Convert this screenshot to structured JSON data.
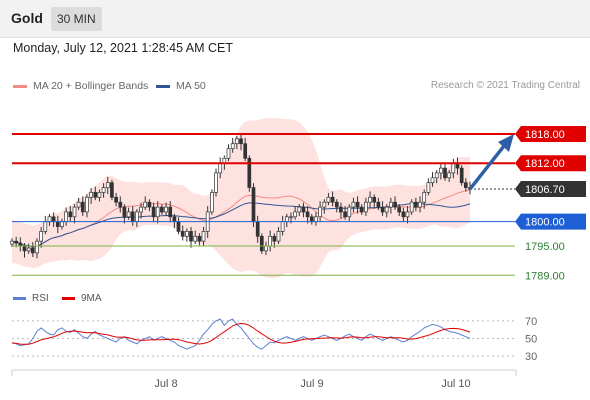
{
  "header": {
    "title": "Gold",
    "timeframe": "30 MIN"
  },
  "datetime": "Monday, July 12, 2021 1:28:45 AM CET",
  "legend": {
    "items": [
      {
        "label": "MA 20 + Bollinger Bands",
        "color": "#f28b82"
      },
      {
        "label": "MA 50",
        "color": "#2f5597"
      }
    ],
    "credit": "Research © 2021 Trading Central"
  },
  "indicator_legend": {
    "items": [
      {
        "label": "RSI",
        "color": "#5b7fd1"
      },
      {
        "label": "9MA",
        "color": "#e00000"
      }
    ]
  },
  "colors": {
    "resistance": "#e00000",
    "current": "#333333",
    "pivot": "#1f5fd6",
    "support": "#7cb342",
    "arrow": "#2e5fa6"
  },
  "chart_data": {
    "type": "candlestick",
    "ylim": [
      1787,
      1826
    ],
    "x_ticks": [
      "Jul 8",
      "Jul 9",
      "Jul 10"
    ],
    "levels": [
      {
        "label": "1818.00",
        "value": 1818.0,
        "kind": "resistance"
      },
      {
        "label": "1812.00",
        "value": 1812.0,
        "kind": "resistance"
      },
      {
        "label": "1806.70",
        "value": 1806.7,
        "kind": "current"
      },
      {
        "label": "1800.00",
        "value": 1800.0,
        "kind": "pivot"
      },
      {
        "label": "1795.00",
        "value": 1795.0,
        "kind": "support"
      },
      {
        "label": "1789.00",
        "value": 1789.0,
        "kind": "support"
      }
    ],
    "closes": [
      1796,
      1795.6,
      1795,
      1794,
      1794.6,
      1793.6,
      1796,
      1798,
      1800,
      1801,
      1800,
      1799,
      1800,
      1802,
      1801,
      1803,
      1804,
      1802,
      1805,
      1806,
      1805,
      1806,
      1807,
      1808,
      1805,
      1804,
      1803,
      1801,
      1802,
      1800,
      1802,
      1803,
      1804,
      1803,
      1801,
      1803,
      1802,
      1803,
      1801,
      1800,
      1798,
      1797,
      1798,
      1796,
      1797,
      1796,
      1798,
      1802,
      1806,
      1810,
      1812,
      1813,
      1815,
      1816,
      1817,
      1816,
      1813,
      1807,
      1800,
      1797,
      1794,
      1795,
      1797,
      1796,
      1798,
      1800,
      1801,
      1801,
      1802,
      1803,
      1802,
      1801,
      1800,
      1801,
      1803,
      1804,
      1805,
      1804,
      1803,
      1802,
      1801,
      1803,
      1804,
      1803,
      1802,
      1804,
      1805,
      1804,
      1803,
      1802,
      1803,
      1804,
      1803,
      1802,
      1801,
      1802,
      1804,
      1803,
      1804,
      1806,
      1808,
      1809,
      1810,
      1811,
      1809,
      1810,
      1812,
      1811,
      1808,
      1807,
      1806.7
    ],
    "rsi": [
      45,
      44,
      42,
      43,
      44,
      50,
      58,
      62,
      58,
      55,
      54,
      60,
      62,
      58,
      57,
      60,
      56,
      52,
      50,
      55,
      58,
      54,
      52,
      50,
      48,
      46,
      50,
      52,
      48,
      46,
      44,
      48,
      50,
      52,
      48,
      50,
      52,
      50,
      48,
      46,
      42,
      40,
      38,
      40,
      42,
      48,
      55,
      60,
      66,
      70,
      72,
      65,
      70,
      72,
      66,
      62,
      56,
      50,
      44,
      40,
      38,
      42,
      46,
      45,
      48,
      50,
      52,
      50,
      48,
      50,
      52,
      50,
      48,
      50,
      52,
      54,
      52,
      50,
      48,
      50,
      53,
      55,
      52,
      50,
      48,
      52,
      55,
      53,
      50,
      48,
      50,
      52,
      50,
      48,
      46,
      48,
      52,
      55,
      58,
      62,
      64,
      66,
      65,
      63,
      60,
      58,
      57,
      56,
      54,
      52,
      50
    ],
    "rsi_levels": [
      70,
      50,
      30
    ],
    "rsi_ylim": [
      20,
      80
    ]
  }
}
